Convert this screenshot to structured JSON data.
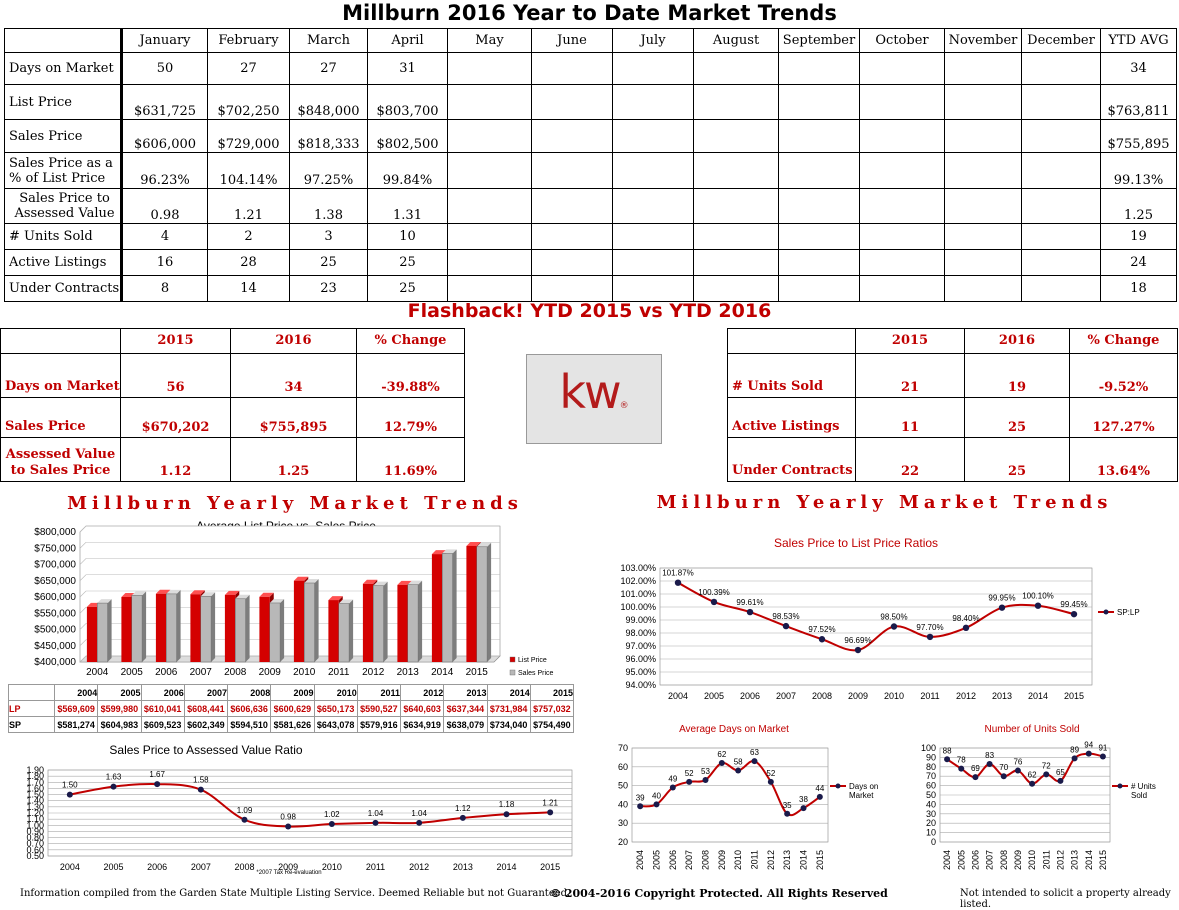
{
  "title": "Millburn 2016 Year to Date Market Trends",
  "main_table": {
    "headers": [
      "",
      "January",
      "February",
      "March",
      "April",
      "May",
      "June",
      "July",
      "August",
      "September",
      "October",
      "November",
      "December",
      "YTD AVG"
    ],
    "rows": [
      {
        "label": "Days on Market",
        "values": [
          "50",
          "27",
          "27",
          "31",
          "",
          "",
          "",
          "",
          "",
          "",
          "",
          ""
        ],
        "avg": "34"
      },
      {
        "label": "List Price",
        "values": [
          "$631,725",
          "$702,250",
          "$848,000",
          "$803,700",
          "",
          "",
          "",
          "",
          "",
          "",
          "",
          ""
        ],
        "avg": "$763,811"
      },
      {
        "label": "Sales Price",
        "values": [
          "$606,000",
          "$729,000",
          "$818,333",
          "$802,500",
          "",
          "",
          "",
          "",
          "",
          "",
          "",
          ""
        ],
        "avg": "$755,895"
      },
      {
        "label": "Sales Price as a % of List Price",
        "values": [
          "96.23%",
          "104.14%",
          "97.25%",
          "99.84%",
          "",
          "",
          "",
          "",
          "",
          "",
          "",
          ""
        ],
        "avg": "99.13%"
      },
      {
        "label": "Sales Price to Assessed Value",
        "values": [
          "0.98",
          "1.21",
          "1.38",
          "1.31",
          "",
          "",
          "",
          "",
          "",
          "",
          "",
          ""
        ],
        "avg": "1.25"
      },
      {
        "label": "# Units Sold",
        "values": [
          "4",
          "2",
          "3",
          "10",
          "",
          "",
          "",
          "",
          "",
          "",
          "",
          ""
        ],
        "avg": "19"
      },
      {
        "label": "Active Listings",
        "values": [
          "16",
          "28",
          "25",
          "25",
          "",
          "",
          "",
          "",
          "",
          "",
          "",
          ""
        ],
        "avg": "24"
      },
      {
        "label": "Under Contracts",
        "values": [
          "8",
          "14",
          "23",
          "25",
          "",
          "",
          "",
          "",
          "",
          "",
          "",
          ""
        ],
        "avg": "18"
      }
    ]
  },
  "flashback": {
    "title": "Flashback!  YTD 2015 vs YTD 2016",
    "headers": [
      "2015",
      "2016",
      "% Change"
    ],
    "left": [
      {
        "label": "Days on Market",
        "v2015": "56",
        "v2016": "34",
        "change": "-39.88%"
      },
      {
        "label": "Sales Price",
        "v2015": "$670,202",
        "v2016": "$755,895",
        "change": "12.79%"
      },
      {
        "label": "Assessed Value to Sales Price",
        "v2015": "1.12",
        "v2016": "1.25",
        "change": "11.69%"
      }
    ],
    "right": [
      {
        "label": "# Units Sold",
        "v2015": "21",
        "v2016": "19",
        "change": "-9.52%"
      },
      {
        "label": "Active Listings",
        "v2015": "11",
        "v2016": "25",
        "change": "127.27%"
      },
      {
        "label": "Under Contracts",
        "v2015": "22",
        "v2016": "25",
        "change": "13.64%"
      }
    ]
  },
  "logo": {
    "text": "kw",
    "mark": "®"
  },
  "section_left_title": "Millburn Yearly Market Trends",
  "section_right_title": "Millburn Yearly Market Trends",
  "data_table": {
    "years": [
      "2004",
      "2005",
      "2006",
      "2007",
      "2008",
      "2009",
      "2010",
      "2011",
      "2012",
      "2013",
      "2014",
      "2015"
    ],
    "lp_label": "LP",
    "sp_label": "SP",
    "lp": [
      "$569,609",
      "$599,980",
      "$610,041",
      "$608,441",
      "$606,636",
      "$600,629",
      "$650,173",
      "$590,527",
      "$640,603",
      "$637,344",
      "$731,984",
      "$757,032"
    ],
    "sp": [
      "$581,274",
      "$604,983",
      "$609,523",
      "$602,349",
      "$594,510",
      "$581,626",
      "$643,078",
      "$579,916",
      "$634,919",
      "$638,079",
      "$734,040",
      "$754,490"
    ]
  },
  "footer": {
    "left": "Information compiled from the Garden State Multiple Listing Service.  Deemed Reliable but not Guaranteed.",
    "center": "© 2004-2016 Copyright Protected.  All Rights Reserved",
    "right": "Not intended to solicit a property already listed."
  },
  "chart_data": [
    {
      "type": "bar",
      "title": "Average List Price vs. Sales Price",
      "categories": [
        "2004",
        "2005",
        "2006",
        "2007",
        "2008",
        "2009",
        "2010",
        "2011",
        "2012",
        "2013",
        "2014",
        "2015"
      ],
      "series": [
        {
          "name": "List Price",
          "values": [
            569609,
            599980,
            610041,
            608441,
            606636,
            600629,
            650173,
            590527,
            640603,
            637344,
            731984,
            757032
          ],
          "color": "#d40000"
        },
        {
          "name": "Sales Price",
          "values": [
            581274,
            604983,
            609523,
            602349,
            594510,
            581626,
            643078,
            579916,
            634919,
            638079,
            734040,
            754490
          ],
          "color": "#b8b8b8"
        }
      ],
      "yticks": [
        "$400,000",
        "$450,000",
        "$500,000",
        "$550,000",
        "$600,000",
        "$650,000",
        "$700,000",
        "$750,000",
        "$800,000"
      ],
      "ylim": [
        400000,
        800000
      ],
      "legend": "bottom-right"
    },
    {
      "type": "line",
      "title": "Sales Price to Assessed Value Ratio",
      "x": [
        "2004",
        "2005",
        "2006",
        "2007",
        "2008",
        "2009",
        "2010",
        "2011",
        "2012",
        "2013",
        "2014",
        "2015"
      ],
      "values": [
        1.5,
        1.63,
        1.67,
        1.58,
        1.09,
        0.98,
        1.02,
        1.04,
        1.04,
        1.12,
        1.18,
        1.21
      ],
      "labels": [
        "1.50",
        "1.63",
        "1.67",
        "1.58",
        "1.09",
        "0.98",
        "1.02",
        "1.04",
        "1.04",
        "1.12",
        "1.18",
        "1.21"
      ],
      "yticks": [
        "0.50",
        "0.70",
        "0.90",
        "1.10",
        "1.30",
        "1.50",
        "1.70",
        "1.90"
      ],
      "extra_yticks": [
        "0.60",
        "0.80",
        "1.00",
        "1.20",
        "1.40",
        "1.60",
        "1.80"
      ],
      "ylim": [
        0.5,
        1.9
      ],
      "annotation": "*2007 Tax Re-evaluation"
    },
    {
      "type": "line",
      "title": "Sales Price to List Price Ratios",
      "x": [
        "2004",
        "2005",
        "2006",
        "2007",
        "2008",
        "2009",
        "2010",
        "2011",
        "2012",
        "2013",
        "2014",
        "2015"
      ],
      "values": [
        101.87,
        100.39,
        99.61,
        98.53,
        97.52,
        96.69,
        98.5,
        97.7,
        98.4,
        99.95,
        100.1,
        99.45
      ],
      "labels": [
        "101.87%",
        "100.39%",
        "99.61%",
        "98.53%",
        "97.52%",
        "96.69%",
        "98.50%",
        "97.70%",
        "98.40%",
        "99.95%",
        "100.10%",
        "99.45%"
      ],
      "yticks": [
        "94.00%",
        "95.00%",
        "96.00%",
        "97.00%",
        "98.00%",
        "99.00%",
        "100.00%",
        "101.00%",
        "102.00%",
        "103.00%"
      ],
      "ylim": [
        94,
        103
      ],
      "legend_name": "SP:LP",
      "legend": "right"
    },
    {
      "type": "line",
      "title": "Average Days on Market",
      "x": [
        "2004",
        "2005",
        "2006",
        "2007",
        "2008",
        "2009",
        "2010",
        "2011",
        "2012",
        "2013",
        "2014",
        "2015"
      ],
      "values": [
        39,
        40,
        49,
        52,
        53,
        62,
        58,
        63,
        52,
        35,
        38,
        44
      ],
      "labels": [
        "39",
        "40",
        "49",
        "52",
        "53",
        "62",
        "58",
        "63",
        "52",
        "35",
        "38",
        "44"
      ],
      "yticks": [
        "20",
        "30",
        "40",
        "50",
        "60",
        "70"
      ],
      "ylim": [
        20,
        70
      ],
      "legend_name": "Days on Market",
      "legend": "right"
    },
    {
      "type": "line",
      "title": "Number of Units Sold",
      "x": [
        "2004",
        "2005",
        "2006",
        "2007",
        "2008",
        "2009",
        "2010",
        "2011",
        "2012",
        "2013",
        "2014",
        "2015"
      ],
      "values": [
        88,
        78,
        69,
        83,
        70,
        76,
        62,
        72,
        65,
        89,
        94,
        91
      ],
      "labels": [
        "88",
        "78",
        "69",
        "83",
        "70",
        "76",
        "62",
        "72",
        "65",
        "89",
        "94",
        "91"
      ],
      "yticks": [
        "0",
        "10",
        "20",
        "30",
        "40",
        "50",
        "60",
        "70",
        "80",
        "90",
        "100"
      ],
      "ylim": [
        0,
        100
      ],
      "legend_name": "# Units Sold",
      "legend": "right"
    }
  ]
}
